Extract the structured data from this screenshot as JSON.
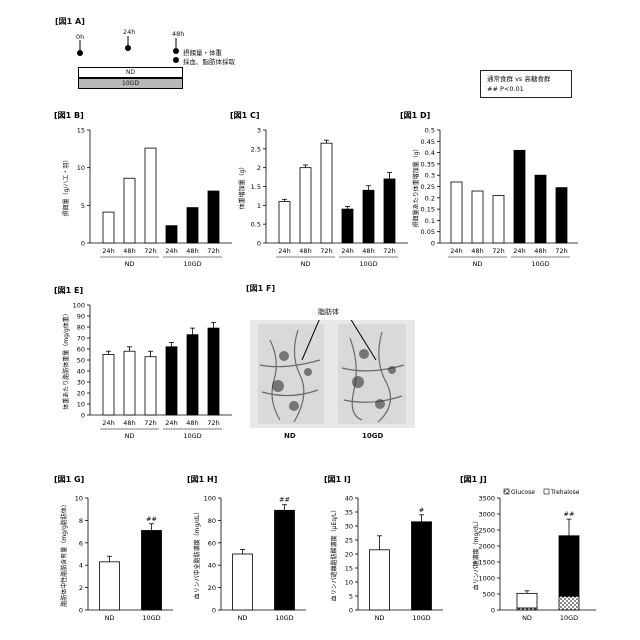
{
  "figure": {
    "panel_a_label": "[図1 A]",
    "timeline": {
      "times": [
        "0h",
        "24h",
        "48h"
      ],
      "notes": [
        "摂餌量・体重",
        "採血、脂肪体採取"
      ],
      "bar_nd": "ND",
      "bar_10gd": "10GD"
    },
    "legend": {
      "line1": "通常食群 vs 高糖食群",
      "line2": "## P<0.01"
    },
    "panel_f_label": "[図1 F]",
    "photo": {
      "callout": "脂肪体",
      "left_label": "ND",
      "right_label": "10GD"
    }
  },
  "chart_data": [
    {
      "id": "B",
      "label": "[図1 B]",
      "type": "bar",
      "ylabel": "摂餌量（g/ハエ・羽）",
      "ylim": [
        0,
        15
      ],
      "yticks": [
        0,
        5,
        10,
        15
      ],
      "categories": [
        "24h",
        "48h",
        "72h",
        "24h",
        "48h",
        "72h"
      ],
      "groups": [
        "ND",
        "10GD"
      ],
      "values": [
        4.1,
        8.6,
        12.6,
        2.3,
        4.7,
        6.9
      ],
      "errors": [
        0,
        0,
        0,
        0,
        0,
        0
      ],
      "fills": [
        "#ffffff",
        "#ffffff",
        "#ffffff",
        "#000000",
        "#000000",
        "#000000"
      ]
    },
    {
      "id": "C",
      "label": "[図1 C]",
      "type": "bar",
      "ylabel": "体重増加量（g）",
      "ylim": [
        0,
        3
      ],
      "yticks": [
        0,
        0.5,
        1,
        1.5,
        2,
        2.5,
        3
      ],
      "categories": [
        "24h",
        "48h",
        "72h",
        "24h",
        "48h",
        "72h"
      ],
      "groups": [
        "ND",
        "10GD"
      ],
      "values": [
        1.1,
        2.0,
        2.65,
        0.9,
        1.4,
        1.7
      ],
      "errors": [
        0.06,
        0.07,
        0.08,
        0.07,
        0.12,
        0.17
      ],
      "fills": [
        "#ffffff",
        "#ffffff",
        "#ffffff",
        "#000000",
        "#000000",
        "#000000"
      ]
    },
    {
      "id": "D",
      "label": "[図1 D]",
      "type": "bar",
      "ylabel": "摂餌量あたり体重増加量（g）",
      "ylim": [
        0,
        0.5
      ],
      "yticks": [
        0,
        0.05,
        0.1,
        0.15,
        0.2,
        0.25,
        0.3,
        0.35,
        0.4,
        0.45,
        0.5
      ],
      "categories": [
        "24h",
        "48h",
        "72h",
        "24h",
        "48h",
        "72h"
      ],
      "groups": [
        "ND",
        "10GD"
      ],
      "values": [
        0.27,
        0.23,
        0.21,
        0.41,
        0.3,
        0.245
      ],
      "errors": [
        0,
        0,
        0,
        0,
        0,
        0
      ],
      "fills": [
        "#ffffff",
        "#ffffff",
        "#ffffff",
        "#000000",
        "#000000",
        "#000000"
      ]
    },
    {
      "id": "E",
      "label": "[図1 E]",
      "type": "bar",
      "ylabel": "体重あたり脂肪体重量（mg/g体重）",
      "ylim": [
        0,
        100
      ],
      "yticks": [
        0,
        10,
        20,
        30,
        40,
        50,
        60,
        70,
        80,
        90,
        100
      ],
      "categories": [
        "24h",
        "48h",
        "72h",
        "24h",
        "48h",
        "72h"
      ],
      "groups": [
        "ND",
        "10GD"
      ],
      "values": [
        55,
        58,
        53,
        62,
        73,
        79
      ],
      "errors": [
        3,
        4,
        5,
        4,
        6,
        5
      ],
      "fills": [
        "#ffffff",
        "#ffffff",
        "#ffffff",
        "#000000",
        "#000000",
        "#000000"
      ]
    },
    {
      "id": "G",
      "label": "[図1 G]",
      "type": "bar",
      "ylabel": "脂肪体中性脂肪含有量（mg/g脂肪体）",
      "ylim": [
        0,
        10
      ],
      "yticks": [
        0,
        2,
        4,
        6,
        8,
        10
      ],
      "categories": [
        "ND",
        "10GD"
      ],
      "values": [
        4.3,
        7.1
      ],
      "errors": [
        0.5,
        0.6
      ],
      "fills": [
        "#ffffff",
        "#000000"
      ],
      "marks": [
        "",
        "##"
      ]
    },
    {
      "id": "H",
      "label": "[図1 H]",
      "type": "bar",
      "ylabel": "血リンパ中全脂肪濃度（mg/dL）",
      "ylim": [
        0,
        100
      ],
      "yticks": [
        0,
        20,
        40,
        60,
        80,
        100
      ],
      "categories": [
        "ND",
        "10GD"
      ],
      "values": [
        50,
        89
      ],
      "errors": [
        4,
        5
      ],
      "fills": [
        "#ffffff",
        "#000000"
      ],
      "marks": [
        "",
        "##"
      ]
    },
    {
      "id": "I",
      "label": "[図1 I]",
      "type": "bar",
      "ylabel": "血リンパ遊離脂肪酸濃度（μEq/L）",
      "ylim": [
        0,
        40
      ],
      "yticks": [
        0,
        5,
        10,
        15,
        20,
        25,
        30,
        35,
        40
      ],
      "categories": [
        "ND",
        "10GD"
      ],
      "values": [
        21.5,
        31.5
      ],
      "errors": [
        5,
        2.5
      ],
      "fills": [
        "#ffffff",
        "#000000"
      ],
      "marks": [
        "",
        "#"
      ]
    },
    {
      "id": "J",
      "label": "[図1 J]",
      "type": "bar",
      "ylabel": "血リンパ糖濃度（mg/dL）",
      "ylim": [
        0,
        3500
      ],
      "yticks": [
        0,
        500,
        1000,
        1500,
        2000,
        2500,
        3000,
        3500
      ],
      "categories": [
        "ND",
        "10GD"
      ],
      "values": [
        520,
        2320
      ],
      "errors": [
        80,
        520
      ],
      "fills": [
        "#ffffff",
        "#000000"
      ],
      "marks": [
        "",
        "##"
      ],
      "series": [
        {
          "name": "Glucose",
          "values": [
            60,
            430
          ]
        },
        {
          "name": "Trehalose",
          "values": [
            460,
            1890
          ]
        }
      ]
    }
  ]
}
